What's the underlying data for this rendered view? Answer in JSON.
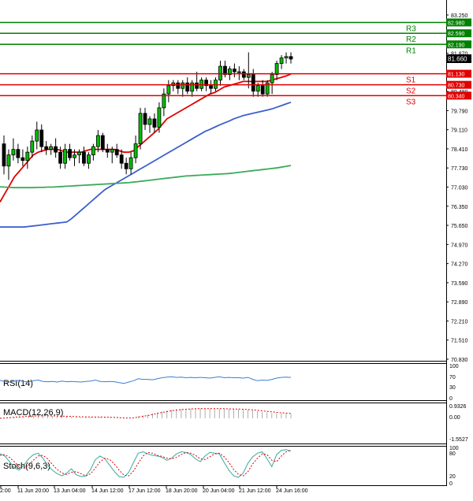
{
  "chart_data": {
    "type": "candlestick",
    "price_axis": {
      "ticks": [
        "83.250",
        "82.560",
        "81.870",
        "81.180",
        "80.480",
        "79.790",
        "79.110",
        "78.410",
        "77.730",
        "77.030",
        "76.350",
        "75.650",
        "74.970",
        "74.270",
        "73.590",
        "72.890",
        "72.210",
        "71.510",
        "70.830"
      ],
      "range": [
        70.83,
        83.25
      ]
    },
    "time_axis": {
      "ticks": [
        "2:00",
        "11 Jun 20:00",
        "13 Jun 04:00",
        "14 Jun 12:00",
        "17 Jun 12:00",
        "18 Jun 20:00",
        "20 Jun 04:00",
        "21 Jun 12:00",
        "24 Jun 16:00"
      ]
    },
    "current_price": "81.660",
    "levels": [
      {
        "name": "R3",
        "value": "82.980",
        "color": "#008000"
      },
      {
        "name": "R2",
        "value": "82.590",
        "color": "#008000"
      },
      {
        "name": "R1",
        "value": "82.190",
        "color": "#008000"
      },
      {
        "name": "S1",
        "value": "81.130",
        "color": "#e00000"
      },
      {
        "name": "S2",
        "value": "80.730",
        "color": "#e00000"
      },
      {
        "name": "S3",
        "value": "80.340",
        "color": "#e00000"
      }
    ],
    "candles": [
      {
        "o": 78.6,
        "h": 78.9,
        "l": 77.5,
        "c": 77.8
      },
      {
        "o": 77.8,
        "h": 78.4,
        "l": 77.3,
        "c": 78.2
      },
      {
        "o": 78.2,
        "h": 78.8,
        "l": 78.0,
        "c": 78.4
      },
      {
        "o": 78.4,
        "h": 78.6,
        "l": 77.9,
        "c": 78.1
      },
      {
        "o": 78.1,
        "h": 78.4,
        "l": 77.8,
        "c": 78.0
      },
      {
        "o": 78.0,
        "h": 78.5,
        "l": 77.7,
        "c": 78.3
      },
      {
        "o": 78.3,
        "h": 78.9,
        "l": 78.1,
        "c": 78.7
      },
      {
        "o": 78.7,
        "h": 79.4,
        "l": 78.4,
        "c": 79.1
      },
      {
        "o": 79.1,
        "h": 79.3,
        "l": 78.3,
        "c": 78.5
      },
      {
        "o": 78.5,
        "h": 78.7,
        "l": 78.2,
        "c": 78.4
      },
      {
        "o": 78.4,
        "h": 78.6,
        "l": 78.2,
        "c": 78.5
      },
      {
        "o": 78.5,
        "h": 78.8,
        "l": 78.1,
        "c": 78.3
      },
      {
        "o": 78.3,
        "h": 78.5,
        "l": 77.7,
        "c": 77.9
      },
      {
        "o": 77.9,
        "h": 78.6,
        "l": 77.7,
        "c": 78.4
      },
      {
        "o": 78.4,
        "h": 78.6,
        "l": 78.0,
        "c": 78.1
      },
      {
        "o": 78.1,
        "h": 78.4,
        "l": 77.8,
        "c": 78.2
      },
      {
        "o": 78.2,
        "h": 78.4,
        "l": 77.9,
        "c": 78.3
      },
      {
        "o": 78.3,
        "h": 78.5,
        "l": 77.8,
        "c": 77.9
      },
      {
        "o": 77.9,
        "h": 78.3,
        "l": 77.7,
        "c": 78.2
      },
      {
        "o": 78.2,
        "h": 78.6,
        "l": 78.0,
        "c": 78.5
      },
      {
        "o": 78.5,
        "h": 79.1,
        "l": 78.3,
        "c": 78.9
      },
      {
        "o": 78.9,
        "h": 79.0,
        "l": 78.3,
        "c": 78.4
      },
      {
        "o": 78.4,
        "h": 78.6,
        "l": 78.1,
        "c": 78.3
      },
      {
        "o": 78.3,
        "h": 78.5,
        "l": 77.9,
        "c": 78.4
      },
      {
        "o": 78.4,
        "h": 78.6,
        "l": 78.1,
        "c": 78.2
      },
      {
        "o": 78.2,
        "h": 78.4,
        "l": 77.7,
        "c": 77.9
      },
      {
        "o": 77.9,
        "h": 78.1,
        "l": 77.5,
        "c": 77.7
      },
      {
        "o": 77.7,
        "h": 78.3,
        "l": 77.5,
        "c": 78.1
      },
      {
        "o": 78.1,
        "h": 78.9,
        "l": 77.9,
        "c": 78.6
      },
      {
        "o": 78.6,
        "h": 79.9,
        "l": 78.4,
        "c": 79.7
      },
      {
        "o": 79.7,
        "h": 79.9,
        "l": 79.1,
        "c": 79.3
      },
      {
        "o": 79.3,
        "h": 79.6,
        "l": 79.0,
        "c": 79.5
      },
      {
        "o": 79.5,
        "h": 79.7,
        "l": 79.0,
        "c": 79.2
      },
      {
        "o": 79.2,
        "h": 80.1,
        "l": 79.0,
        "c": 79.9
      },
      {
        "o": 79.9,
        "h": 80.6,
        "l": 79.6,
        "c": 80.4
      },
      {
        "o": 80.4,
        "h": 80.9,
        "l": 80.1,
        "c": 80.7
      },
      {
        "o": 80.7,
        "h": 80.9,
        "l": 80.5,
        "c": 80.8
      },
      {
        "o": 80.8,
        "h": 80.9,
        "l": 80.4,
        "c": 80.6
      },
      {
        "o": 80.6,
        "h": 80.9,
        "l": 80.3,
        "c": 80.8
      },
      {
        "o": 80.8,
        "h": 81.0,
        "l": 80.4,
        "c": 80.5
      },
      {
        "o": 80.5,
        "h": 80.9,
        "l": 80.3,
        "c": 80.8
      },
      {
        "o": 80.8,
        "h": 81.2,
        "l": 80.5,
        "c": 80.6
      },
      {
        "o": 80.6,
        "h": 81.0,
        "l": 80.5,
        "c": 80.9
      },
      {
        "o": 80.9,
        "h": 81.0,
        "l": 80.5,
        "c": 80.7
      },
      {
        "o": 80.7,
        "h": 80.9,
        "l": 80.4,
        "c": 80.6
      },
      {
        "o": 80.6,
        "h": 81.0,
        "l": 80.5,
        "c": 80.9
      },
      {
        "o": 80.9,
        "h": 81.6,
        "l": 80.7,
        "c": 81.4
      },
      {
        "o": 81.4,
        "h": 81.6,
        "l": 81.0,
        "c": 81.1
      },
      {
        "o": 81.1,
        "h": 81.4,
        "l": 80.9,
        "c": 81.3
      },
      {
        "o": 81.3,
        "h": 81.5,
        "l": 81.0,
        "c": 81.2
      },
      {
        "o": 81.2,
        "h": 81.4,
        "l": 80.9,
        "c": 81.2
      },
      {
        "o": 81.2,
        "h": 81.3,
        "l": 80.9,
        "c": 81.0
      },
      {
        "o": 81.0,
        "h": 81.9,
        "l": 80.6,
        "c": 81.1
      },
      {
        "o": 81.1,
        "h": 81.3,
        "l": 80.3,
        "c": 80.5
      },
      {
        "o": 80.5,
        "h": 80.8,
        "l": 80.3,
        "c": 80.7
      },
      {
        "o": 80.7,
        "h": 80.9,
        "l": 80.3,
        "c": 80.4
      },
      {
        "o": 80.4,
        "h": 80.9,
        "l": 80.3,
        "c": 80.8
      },
      {
        "o": 80.8,
        "h": 81.2,
        "l": 80.4,
        "c": 81.1
      },
      {
        "o": 81.1,
        "h": 81.6,
        "l": 80.9,
        "c": 81.5
      },
      {
        "o": 81.5,
        "h": 81.8,
        "l": 81.3,
        "c": 81.7
      },
      {
        "o": 81.7,
        "h": 81.9,
        "l": 81.5,
        "c": 81.75
      },
      {
        "o": 81.75,
        "h": 81.9,
        "l": 81.5,
        "c": 81.66
      }
    ],
    "moving_averages": [
      {
        "color": "#e00000",
        "values": [
          76.5,
          76.8,
          77.1,
          77.4,
          77.6,
          77.8,
          78.0,
          78.2,
          78.3,
          78.35,
          78.4,
          78.4,
          78.4,
          78.35,
          78.3,
          78.3,
          78.3,
          78.3,
          78.35,
          78.4,
          78.4,
          78.4,
          78.4,
          78.4,
          78.4,
          78.35,
          78.3,
          78.3,
          78.35,
          78.5,
          78.65,
          78.8,
          78.95,
          79.1,
          79.3,
          79.5,
          79.6,
          79.7,
          79.8,
          79.9,
          80.0,
          80.1,
          80.2,
          80.3,
          80.4,
          80.45,
          80.55,
          80.65,
          80.7,
          80.75,
          80.8,
          80.85,
          80.85,
          80.85,
          80.85,
          80.85,
          80.85,
          80.9,
          80.95,
          81.0,
          81.05,
          81.12
        ]
      },
      {
        "color": "#3a5fcd",
        "values": [
          75.6,
          75.6,
          75.6,
          75.6,
          75.6,
          75.6,
          75.62,
          75.64,
          75.66,
          75.68,
          75.7,
          75.72,
          75.74,
          75.76,
          75.78,
          75.9,
          76.05,
          76.2,
          76.35,
          76.5,
          76.65,
          76.8,
          76.95,
          77.05,
          77.15,
          77.25,
          77.35,
          77.45,
          77.55,
          77.65,
          77.75,
          77.85,
          77.95,
          78.05,
          78.15,
          78.25,
          78.35,
          78.45,
          78.55,
          78.65,
          78.75,
          78.85,
          78.95,
          79.05,
          79.12,
          79.2,
          79.28,
          79.35,
          79.42,
          79.5,
          79.56,
          79.62,
          79.66,
          79.7,
          79.74,
          79.78,
          79.82,
          79.86,
          79.92,
          79.98,
          80.04,
          80.1
        ]
      },
      {
        "color": "#3aaa5a",
        "values": [
          77.05,
          77.04,
          77.03,
          77.02,
          77.02,
          77.02,
          77.02,
          77.02,
          77.03,
          77.03,
          77.04,
          77.04,
          77.05,
          77.06,
          77.07,
          77.08,
          77.09,
          77.1,
          77.11,
          77.12,
          77.13,
          77.14,
          77.15,
          77.16,
          77.17,
          77.18,
          77.19,
          77.2,
          77.22,
          77.24,
          77.26,
          77.28,
          77.3,
          77.32,
          77.34,
          77.36,
          77.38,
          77.4,
          77.42,
          77.44,
          77.45,
          77.46,
          77.47,
          77.48,
          77.49,
          77.5,
          77.51,
          77.52,
          77.53,
          77.55,
          77.57,
          77.59,
          77.61,
          77.63,
          77.65,
          77.67,
          77.69,
          77.71,
          77.73,
          77.76,
          77.79,
          77.82
        ]
      }
    ],
    "indicators": [
      {
        "name": "RSI(14)",
        "ticks": [
          "100",
          "70",
          "30",
          "0"
        ]
      },
      {
        "name": "MACD(12,26,9)",
        "ticks": [
          "0.9326",
          "0.00",
          "-1.5527"
        ]
      },
      {
        "name": "Stoch(9,6,3)",
        "ticks": [
          "100",
          "80",
          "20",
          "0"
        ]
      }
    ],
    "rsi": [
      55,
      52,
      50,
      53,
      55,
      52,
      50,
      54,
      56,
      52,
      51,
      52,
      50,
      53,
      51,
      52,
      51,
      50,
      52,
      53,
      56,
      52,
      51,
      52,
      51,
      48,
      46,
      50,
      54,
      60,
      58,
      58,
      57,
      60,
      63,
      65,
      66,
      64,
      65,
      63,
      64,
      63,
      64,
      63,
      62,
      64,
      66,
      63,
      64,
      63,
      63,
      62,
      64,
      58,
      54,
      56,
      55,
      58,
      62,
      64,
      65,
      64
    ],
    "macd_histogram": [
      -0.05,
      0.0,
      0.05,
      0.08,
      0.1,
      0.12,
      0.15,
      0.18,
      0.2,
      0.2,
      0.2,
      0.18,
      0.16,
      0.15,
      0.14,
      0.12,
      0.1,
      0.08,
      0.08,
      0.08,
      0.1,
      0.1,
      0.08,
      0.06,
      0.05,
      0.02,
      -0.02,
      0.0,
      0.05,
      0.15,
      0.22,
      0.3,
      0.38,
      0.45,
      0.55,
      0.62,
      0.68,
      0.72,
      0.75,
      0.76,
      0.77,
      0.78,
      0.78,
      0.78,
      0.77,
      0.76,
      0.76,
      0.75,
      0.74,
      0.73,
      0.72,
      0.7,
      0.68,
      0.62,
      0.56,
      0.5,
      0.46,
      0.42,
      0.4,
      0.38,
      0.36,
      0.35
    ],
    "macd_signal": [
      0.0,
      0.02,
      0.05,
      0.08,
      0.11,
      0.14,
      0.16,
      0.18,
      0.19,
      0.2,
      0.2,
      0.19,
      0.18,
      0.17,
      0.16,
      0.15,
      0.13,
      0.12,
      0.11,
      0.1,
      0.1,
      0.1,
      0.09,
      0.08,
      0.07,
      0.05,
      0.03,
      0.02,
      0.04,
      0.1,
      0.16,
      0.22,
      0.3,
      0.38,
      0.46,
      0.53,
      0.6,
      0.65,
      0.69,
      0.72,
      0.74,
      0.76,
      0.77,
      0.77,
      0.77,
      0.77,
      0.76,
      0.76,
      0.75,
      0.74,
      0.73,
      0.72,
      0.7,
      0.67,
      0.63,
      0.59,
      0.55,
      0.51,
      0.47,
      0.44,
      0.41,
      0.39
    ],
    "stoch_k": [
      85,
      78,
      62,
      45,
      38,
      52,
      70,
      82,
      86,
      72,
      52,
      38,
      28,
      22,
      30,
      42,
      25,
      20,
      22,
      40,
      68,
      78,
      70,
      52,
      34,
      20,
      18,
      32,
      60,
      86,
      90,
      84,
      80,
      78,
      74,
      66,
      72,
      84,
      90,
      88,
      82,
      70,
      62,
      78,
      88,
      86,
      84,
      60,
      38,
      22,
      18,
      30,
      58,
      76,
      86,
      90,
      70,
      48,
      82,
      94,
      96,
      92
    ],
    "stoch_d": [
      80,
      82,
      74,
      62,
      48,
      44,
      52,
      66,
      78,
      80,
      70,
      54,
      40,
      30,
      26,
      32,
      34,
      28,
      22,
      28,
      44,
      62,
      72,
      68,
      55,
      38,
      24,
      22,
      36,
      58,
      78,
      88,
      86,
      80,
      77,
      72,
      70,
      74,
      82,
      88,
      86,
      80,
      70,
      68,
      76,
      84,
      86,
      76,
      60,
      40,
      26,
      22,
      34,
      56,
      72,
      84,
      82,
      66,
      62,
      78,
      90,
      94
    ]
  }
}
